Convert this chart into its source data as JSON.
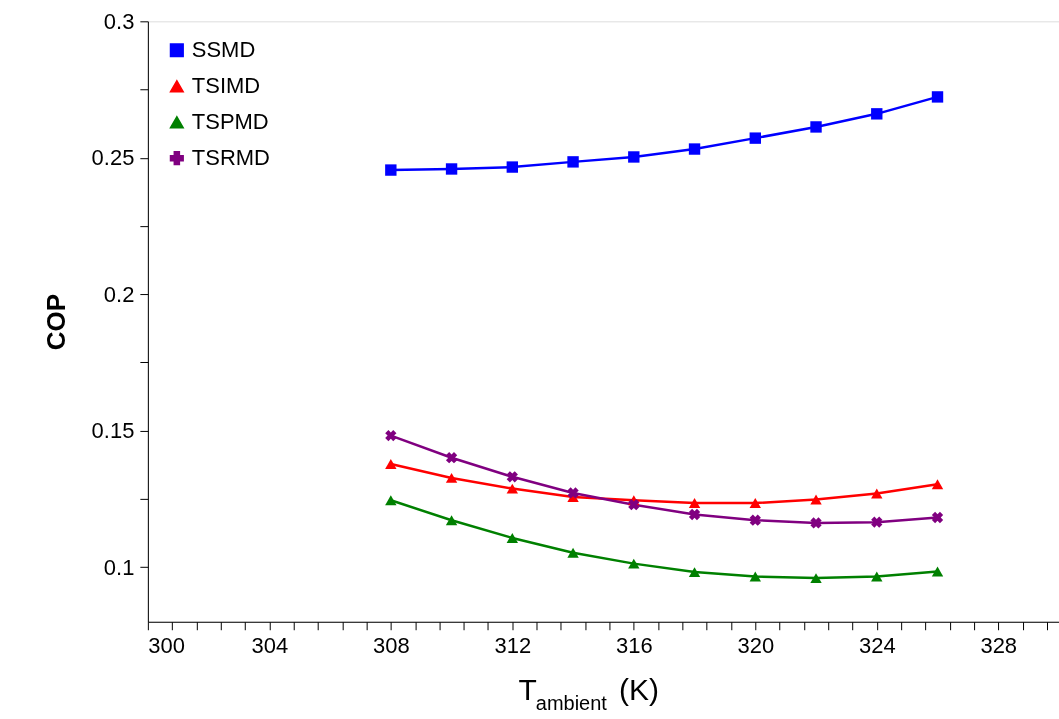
{
  "chart_data": {
    "type": "line",
    "xlabel": "T$_{ambient}$ (K)",
    "ylabel": "COP",
    "x": [
      308,
      310,
      312,
      314,
      316,
      318,
      320,
      322,
      324,
      326
    ],
    "series": [
      {
        "name": "SSMD",
        "color": "#0000ff",
        "marker": "square",
        "values": [
          0.2455,
          0.2459,
          0.2466,
          0.2485,
          0.2503,
          0.2532,
          0.2572,
          0.2613,
          0.2661,
          0.2723
        ]
      },
      {
        "name": "TSIMD",
        "color": "#ff0000",
        "marker": "triangle",
        "values": [
          0.1378,
          0.1327,
          0.1288,
          0.1257,
          0.1245,
          0.1235,
          0.1235,
          0.1248,
          0.127,
          0.1304
        ]
      },
      {
        "name": "TSPMD",
        "color": "#008000",
        "marker": "triangle",
        "values": [
          0.1245,
          0.1172,
          0.1107,
          0.1053,
          0.1013,
          0.0982,
          0.0966,
          0.096,
          0.0966,
          0.0984
        ]
      },
      {
        "name": "TSRMD",
        "color": "#800080",
        "marker": "cross",
        "values": [
          0.1482,
          0.1401,
          0.1331,
          0.1272,
          0.1229,
          0.1193,
          0.1172,
          0.1162,
          0.1165,
          0.1182
        ]
      }
    ],
    "xlim": [
      300,
      330
    ],
    "xticks": [
      300,
      {
        "value": 300.8,
        "label": null
      },
      {
        "value": 301.6,
        "label": null
      },
      {
        "value": 302.4,
        "label": null
      },
      {
        "value": 303.2,
        "label": null
      },
      304,
      {
        "value": 304.8,
        "label": null
      },
      {
        "value": 305.6,
        "label": null
      },
      {
        "value": 306.4,
        "label": null
      },
      {
        "value": 307.2,
        "label": null
      },
      308,
      {
        "value": 308.8,
        "label": null
      },
      {
        "value": 309.6,
        "label": null
      },
      {
        "value": 310.4,
        "label": null
      },
      {
        "value": 311.2,
        "label": null
      },
      312,
      {
        "value": 312.8,
        "label": null
      },
      {
        "value": 313.6,
        "label": null
      },
      {
        "value": 314.4,
        "label": null
      },
      {
        "value": 315.2,
        "label": null
      },
      316,
      {
        "value": 316.8,
        "label": null
      },
      {
        "value": 317.6,
        "label": null
      },
      {
        "value": 318.4,
        "label": null
      },
      {
        "value": 319.2,
        "label": null
      },
      320,
      {
        "value": 320.8,
        "label": null
      },
      {
        "value": 321.6,
        "label": null
      },
      {
        "value": 322.4,
        "label": null
      },
      {
        "value": 323.2,
        "label": null
      },
      324,
      {
        "value": 324.8,
        "label": null
      },
      {
        "value": 325.6,
        "label": null
      },
      {
        "value": 326.4,
        "label": null
      },
      {
        "value": 327.2,
        "label": null
      },
      328,
      {
        "value": 328.8,
        "label": null
      },
      {
        "value": 329.6,
        "label": null
      }
    ],
    "ylim": [
      0.08,
      0.3
    ],
    "yticks": [
      0.1,
      {
        "value": 0.125,
        "label": null
      },
      0.15,
      {
        "value": 0.175,
        "label": null
      },
      0.2,
      {
        "value": 0.225,
        "label": null
      },
      0.25,
      {
        "value": 0.275,
        "label": null
      },
      0.3
    ],
    "grid": false,
    "legend": "top left",
    "line_style": "solid"
  }
}
